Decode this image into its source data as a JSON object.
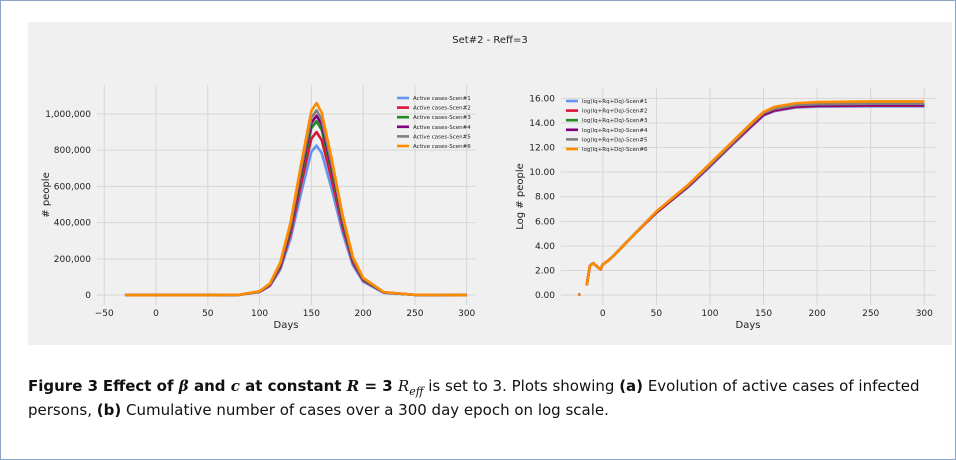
{
  "suptitle": "Set#2 - Reff=3",
  "chart_data": [
    {
      "type": "line",
      "xlabel": "Days",
      "ylabel": "# people",
      "grid": true,
      "legend": "upper right",
      "x": [
        -30,
        0,
        50,
        80,
        100,
        110,
        120,
        130,
        140,
        150,
        155,
        160,
        170,
        180,
        190,
        200,
        220,
        250,
        300
      ],
      "xlim": [
        -57,
        308
      ],
      "xticks": [
        {
          "value": -50,
          "label": "−50"
        },
        0,
        50,
        100,
        150,
        200,
        250,
        300
      ],
      "ylim": [
        -55000,
        1160000
      ],
      "yticks": [
        0,
        {
          "value": 200000,
          "label": "200,000"
        },
        {
          "value": 400000,
          "label": "400,000"
        },
        {
          "value": 600000,
          "label": "600,000"
        },
        {
          "value": 800000,
          "label": "800,000"
        },
        {
          "value": 1000000,
          "label": "1,000,000"
        }
      ],
      "series": [
        {
          "name": "Active cases-Scen#1",
          "color": "#6495ed",
          "values": [
            0,
            0,
            0,
            1000,
            17000,
            50000,
            140000,
            314000,
            561000,
            792000,
            825000,
            784000,
            578000,
            347000,
            165000,
            74000,
            12000,
            1000,
            0
          ]
        },
        {
          "name": "Active cases-Scen#2",
          "color": "#dc143c",
          "values": [
            0,
            0,
            0,
            1000,
            18000,
            54000,
            153000,
            342000,
            612000,
            864000,
            900000,
            855000,
            630000,
            378000,
            180000,
            81000,
            14000,
            1000,
            0
          ]
        },
        {
          "name": "Active cases-Scen#3",
          "color": "#228b22",
          "values": [
            0,
            0,
            0,
            1000,
            19000,
            58000,
            163000,
            365000,
            653000,
            922000,
            960000,
            912000,
            672000,
            403000,
            192000,
            86000,
            14000,
            1000,
            0
          ]
        },
        {
          "name": "Active cases-Scen#4",
          "color": "#800080",
          "values": [
            0,
            0,
            0,
            1000,
            20000,
            59000,
            168000,
            376000,
            673000,
            950000,
            990000,
            941000,
            693000,
            416000,
            198000,
            89000,
            15000,
            1000,
            0
          ]
        },
        {
          "name": "Active cases-Scen#5",
          "color": "#808080",
          "values": [
            0,
            0,
            0,
            1000,
            20000,
            61000,
            173000,
            388000,
            694000,
            979000,
            1020000,
            969000,
            714000,
            428000,
            204000,
            92000,
            15000,
            1000,
            0
          ]
        },
        {
          "name": "Active cases-Scen#6",
          "color": "#ff8c00",
          "values": [
            0,
            0,
            0,
            1000,
            21000,
            64000,
            180000,
            403000,
            721000,
            1018000,
            1060000,
            1007000,
            742000,
            445000,
            212000,
            95000,
            16000,
            1000,
            0
          ]
        }
      ]
    },
    {
      "type": "line",
      "xlabel": "Days",
      "ylabel": "Log # people",
      "grid": true,
      "legend": "upper left",
      "x": [
        -23,
        -21,
        -18,
        -15,
        -12,
        -9,
        -5,
        -2,
        0,
        5,
        10,
        20,
        30,
        50,
        80,
        100,
        120,
        140,
        150,
        160,
        180,
        200,
        250,
        300
      ],
      "xlim": [
        -39,
        310
      ],
      "xticks": [
        0,
        50,
        100,
        150,
        200,
        250,
        300
      ],
      "ylim": [
        -0.8,
        16.84
      ],
      "yticks": [
        {
          "value": 0,
          "label": "0.00"
        },
        {
          "value": 2,
          "label": "2.00"
        },
        {
          "value": 4,
          "label": "4.00"
        },
        {
          "value": 6,
          "label": "6.00"
        },
        {
          "value": 8,
          "label": "8.00"
        },
        {
          "value": 10,
          "label": "10.00"
        },
        {
          "value": 12,
          "label": "12.00"
        },
        {
          "value": 14,
          "label": "14.00"
        },
        {
          "value": 16,
          "label": "16.00"
        }
      ],
      "series": [
        {
          "name": "log(Iq+Rq+Dq)-Scen#1",
          "color": "#6495ed",
          "values": [
            0.05,
            0.05,
            null,
            0.8,
            2.4,
            2.6,
            2.3,
            2.1,
            2.5,
            2.8,
            3.2,
            4.1,
            5.0,
            6.7,
            8.8,
            10.45,
            12.15,
            13.8,
            14.6,
            14.95,
            15.25,
            15.32,
            15.35,
            15.35
          ]
        },
        {
          "name": "log(Iq+Rq+Dq)-Scen#2",
          "color": "#dc143c",
          "values": [
            0.05,
            0.05,
            null,
            0.8,
            2.4,
            2.6,
            2.3,
            2.1,
            2.5,
            2.8,
            3.2,
            4.1,
            5.0,
            6.7,
            8.85,
            10.5,
            12.2,
            13.85,
            14.65,
            15.0,
            15.3,
            15.38,
            15.4,
            15.4
          ]
        },
        {
          "name": "log(Iq+Rq+Dq)-Scen#3",
          "color": "#228b22",
          "values": [
            0.05,
            0.05,
            null,
            0.8,
            2.4,
            2.6,
            2.3,
            2.1,
            2.5,
            2.8,
            3.2,
            4.1,
            5.0,
            6.75,
            8.9,
            10.55,
            12.25,
            13.95,
            14.75,
            15.1,
            15.38,
            15.43,
            15.46,
            15.46
          ]
        },
        {
          "name": "log(Iq+Rq+Dq)-Scen#4",
          "color": "#800080",
          "values": [
            0.05,
            0.05,
            null,
            0.8,
            2.4,
            2.6,
            2.3,
            2.1,
            2.5,
            2.8,
            3.2,
            4.1,
            5.0,
            6.75,
            8.9,
            10.55,
            12.25,
            13.9,
            14.7,
            15.05,
            15.35,
            15.42,
            15.45,
            15.45
          ]
        },
        {
          "name": "log(Iq+Rq+Dq)-Scen#5",
          "color": "#808080",
          "values": [
            0.05,
            0.05,
            null,
            0.8,
            2.4,
            2.6,
            2.3,
            2.1,
            2.5,
            2.8,
            3.2,
            4.1,
            5.0,
            6.8,
            8.95,
            10.6,
            12.3,
            14.0,
            14.8,
            15.15,
            15.45,
            15.52,
            15.55,
            15.55
          ]
        },
        {
          "name": "log(Iq+Rq+Dq)-Scen#6",
          "color": "#ff8c00",
          "values": [
            0.05,
            0.05,
            null,
            0.8,
            2.4,
            2.6,
            2.3,
            2.1,
            2.5,
            2.8,
            3.2,
            4.1,
            5.0,
            6.8,
            9.0,
            10.7,
            12.4,
            14.1,
            14.9,
            15.3,
            15.6,
            15.7,
            15.75,
            15.75
          ]
        }
      ]
    }
  ],
  "caption": {
    "segments": [
      "Figure 3",
      "Effect of ",
      "β",
      " and ",
      "c",
      " at constant ",
      "R",
      " = 3 ",
      "R",
      "eff",
      " is set to 3. Plots showing ",
      "(a)",
      " Evolution of active cases of infected persons, ",
      "(b)",
      " Cumulative number of cases over a 300 day epoch on log scale."
    ]
  }
}
